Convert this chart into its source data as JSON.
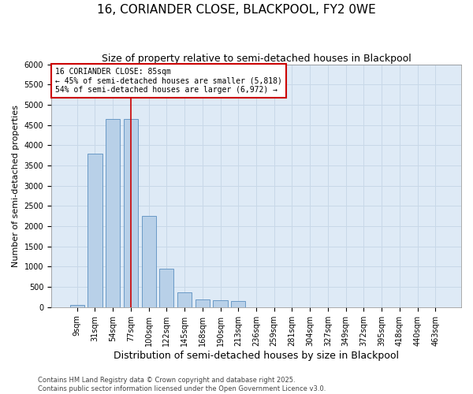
{
  "title": "16, CORIANDER CLOSE, BLACKPOOL, FY2 0WE",
  "subtitle": "Size of property relative to semi-detached houses in Blackpool",
  "xlabel": "Distribution of semi-detached houses by size in Blackpool",
  "ylabel": "Number of semi-detached properties",
  "categories": [
    "9sqm",
    "31sqm",
    "54sqm",
    "77sqm",
    "100sqm",
    "122sqm",
    "145sqm",
    "168sqm",
    "190sqm",
    "213sqm",
    "236sqm",
    "259sqm",
    "281sqm",
    "304sqm",
    "327sqm",
    "349sqm",
    "372sqm",
    "395sqm",
    "418sqm",
    "440sqm",
    "463sqm"
  ],
  "bar_heights": [
    50,
    3800,
    4650,
    4650,
    2250,
    950,
    375,
    200,
    175,
    150,
    0,
    0,
    0,
    0,
    0,
    0,
    0,
    0,
    0,
    0,
    0
  ],
  "bar_color": "#b8d0e8",
  "bar_edge_color": "#5a8fc0",
  "grid_color": "#c8d8e8",
  "background_color": "#deeaf6",
  "vline_color": "#cc0000",
  "annotation_text": "16 CORIANDER CLOSE: 85sqm\n← 45% of semi-detached houses are smaller (5,818)\n54% of semi-detached houses are larger (6,972) →",
  "annotation_box_color": "#ffffff",
  "annotation_box_edge": "#cc0000",
  "vline_x_data": 3.0,
  "ylim": [
    0,
    6000
  ],
  "yticks": [
    0,
    500,
    1000,
    1500,
    2000,
    2500,
    3000,
    3500,
    4000,
    4500,
    5000,
    5500,
    6000
  ],
  "footer": "Contains HM Land Registry data © Crown copyright and database right 2025.\nContains public sector information licensed under the Open Government Licence v3.0.",
  "title_fontsize": 11,
  "subtitle_fontsize": 9,
  "xlabel_fontsize": 9,
  "ylabel_fontsize": 8,
  "tick_fontsize": 7,
  "footer_fontsize": 6,
  "annot_fontsize": 7
}
